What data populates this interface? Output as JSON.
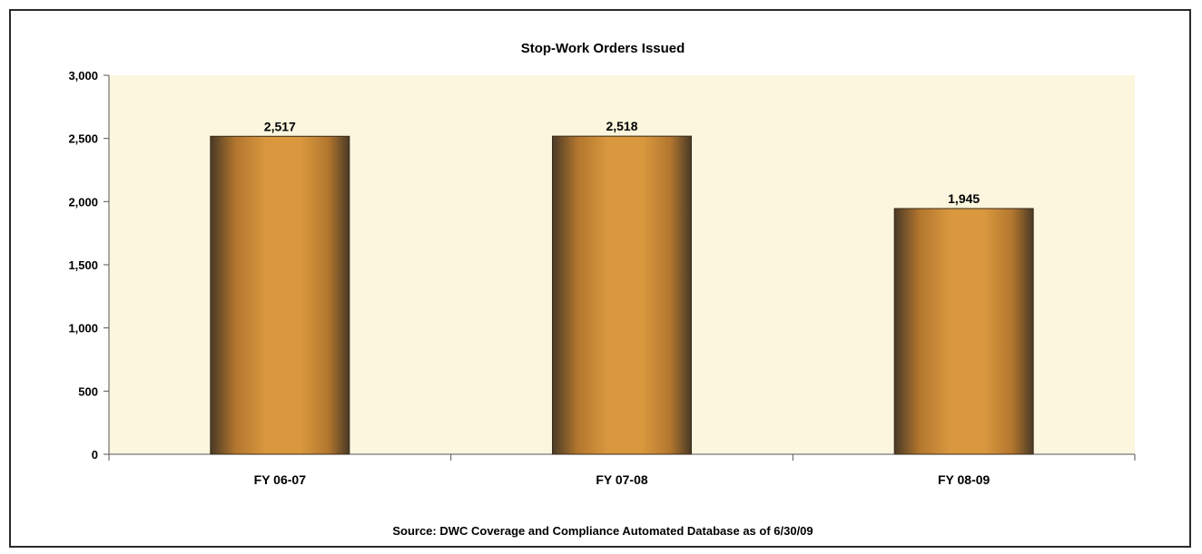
{
  "chart_data": {
    "type": "bar",
    "title": "Stop-Work Orders Issued",
    "categories": [
      "FY 06-07",
      "FY 07-08",
      "FY 08-09"
    ],
    "values": [
      2517,
      2518,
      1945
    ],
    "data_labels": [
      "2,517",
      "2,518",
      "1,945"
    ],
    "y_ticks": [
      0,
      500,
      1000,
      1500,
      2000,
      2500,
      3000
    ],
    "y_tick_labels": [
      "0",
      "500",
      "1,000",
      "1,500",
      "2,000",
      "2,500",
      "3,000"
    ],
    "ylim": [
      0,
      3000
    ],
    "xlabel": "",
    "ylabel": "",
    "grid": false,
    "legend": "none",
    "source": "Source:  DWC Coverage and Compliance Automated Database as of 6/30/09",
    "colors": {
      "plot_bg": "#fbf6dd",
      "bar_light": "#d9983e",
      "bar_mid": "#b2762e",
      "bar_dark": "#4a3a26",
      "axis": "#555555"
    }
  }
}
